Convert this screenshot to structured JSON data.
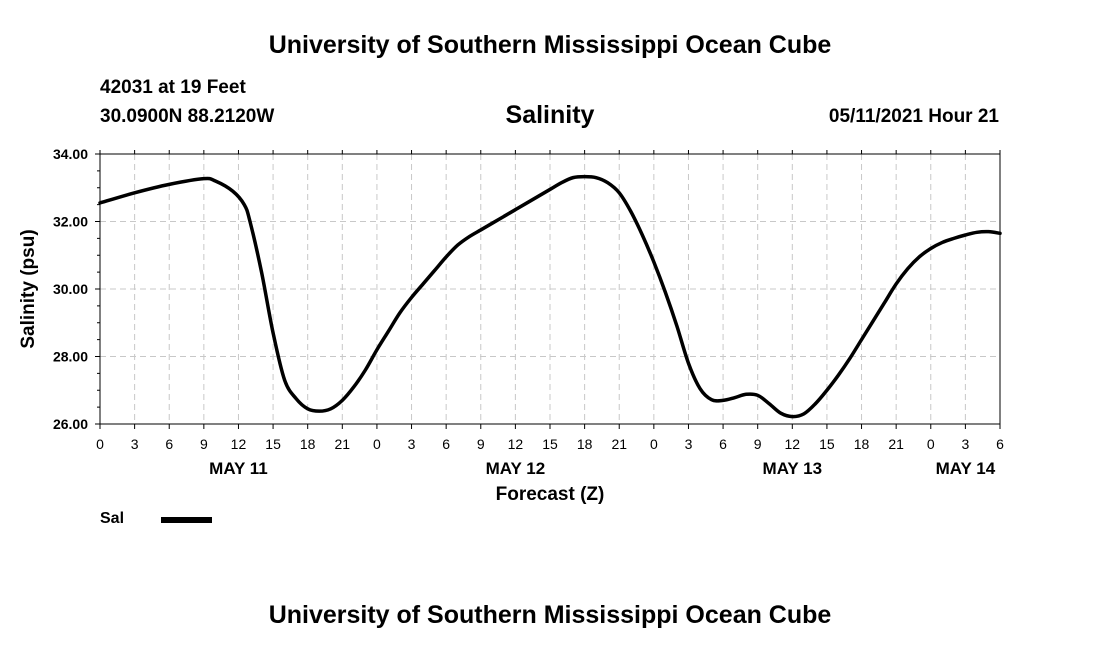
{
  "header": {
    "title": "University of Southern Mississippi Ocean Cube",
    "station": "42031 at 19 Feet",
    "coords": "30.0900N  88.2120W",
    "timestamp": "05/11/2021 Hour 21"
  },
  "footer": {
    "title": "University of Southern Mississippi Ocean Cube"
  },
  "chart_data": {
    "type": "line",
    "title": "Salinity",
    "xlabel": "Forecast (Z)",
    "ylabel": "Salinity (psu)",
    "ylim": [
      26,
      34
    ],
    "yticks": [
      26,
      28,
      30,
      32,
      34
    ],
    "ytick_labels": [
      "26.00",
      "28.00",
      "30.00",
      "32.00",
      "34.00"
    ],
    "xlim": [
      0,
      78
    ],
    "xticks": [
      0,
      3,
      6,
      9,
      12,
      15,
      18,
      21,
      24,
      27,
      30,
      33,
      36,
      39,
      42,
      45,
      48,
      51,
      54,
      57,
      60,
      63,
      66,
      69,
      72,
      75,
      78
    ],
    "xtick_labels": [
      "0",
      "3",
      "6",
      "9",
      "12",
      "15",
      "18",
      "21",
      "0",
      "3",
      "6",
      "9",
      "12",
      "15",
      "18",
      "21",
      "0",
      "3",
      "6",
      "9",
      "12",
      "15",
      "18",
      "21",
      "0",
      "3",
      "6"
    ],
    "day_labels": [
      {
        "x": 12,
        "label": "MAY 11"
      },
      {
        "x": 36,
        "label": "MAY 12"
      },
      {
        "x": 60,
        "label": "MAY 13"
      },
      {
        "x": 75,
        "label": "MAY 14"
      }
    ],
    "grid": true,
    "legend": "bottom-left",
    "series": [
      {
        "name": "Sal",
        "color": "#000000",
        "x": [
          0,
          3,
          6,
          9,
          10,
          11.5,
          12.5,
          13,
          14,
          15,
          16,
          17,
          18,
          19,
          20,
          21,
          22,
          23,
          24,
          25,
          26,
          27,
          28,
          29,
          30,
          31,
          32,
          33,
          34,
          35,
          36,
          37,
          38,
          39,
          40,
          41,
          42,
          43,
          44,
          45,
          46,
          47,
          48,
          49,
          50,
          51,
          52,
          53,
          54,
          55,
          56,
          57,
          58,
          59,
          60,
          61,
          62,
          63,
          64,
          65,
          66,
          67,
          68,
          69,
          70,
          71,
          72,
          73,
          74,
          75,
          76,
          77,
          78
        ],
        "y": [
          32.55,
          32.85,
          33.1,
          33.27,
          33.2,
          32.9,
          32.5,
          32.0,
          30.5,
          28.7,
          27.3,
          26.75,
          26.45,
          26.38,
          26.45,
          26.7,
          27.1,
          27.6,
          28.2,
          28.75,
          29.3,
          29.75,
          30.15,
          30.55,
          30.95,
          31.3,
          31.55,
          31.75,
          31.95,
          32.15,
          32.35,
          32.55,
          32.75,
          32.95,
          33.15,
          33.3,
          33.33,
          33.3,
          33.15,
          32.85,
          32.3,
          31.6,
          30.8,
          29.9,
          28.9,
          27.8,
          27.05,
          26.72,
          26.7,
          26.78,
          26.88,
          26.85,
          26.6,
          26.32,
          26.22,
          26.3,
          26.6,
          27.0,
          27.45,
          27.95,
          28.5,
          29.05,
          29.6,
          30.15,
          30.6,
          30.95,
          31.2,
          31.38,
          31.5,
          31.6,
          31.68,
          31.7,
          31.65
        ]
      }
    ]
  }
}
